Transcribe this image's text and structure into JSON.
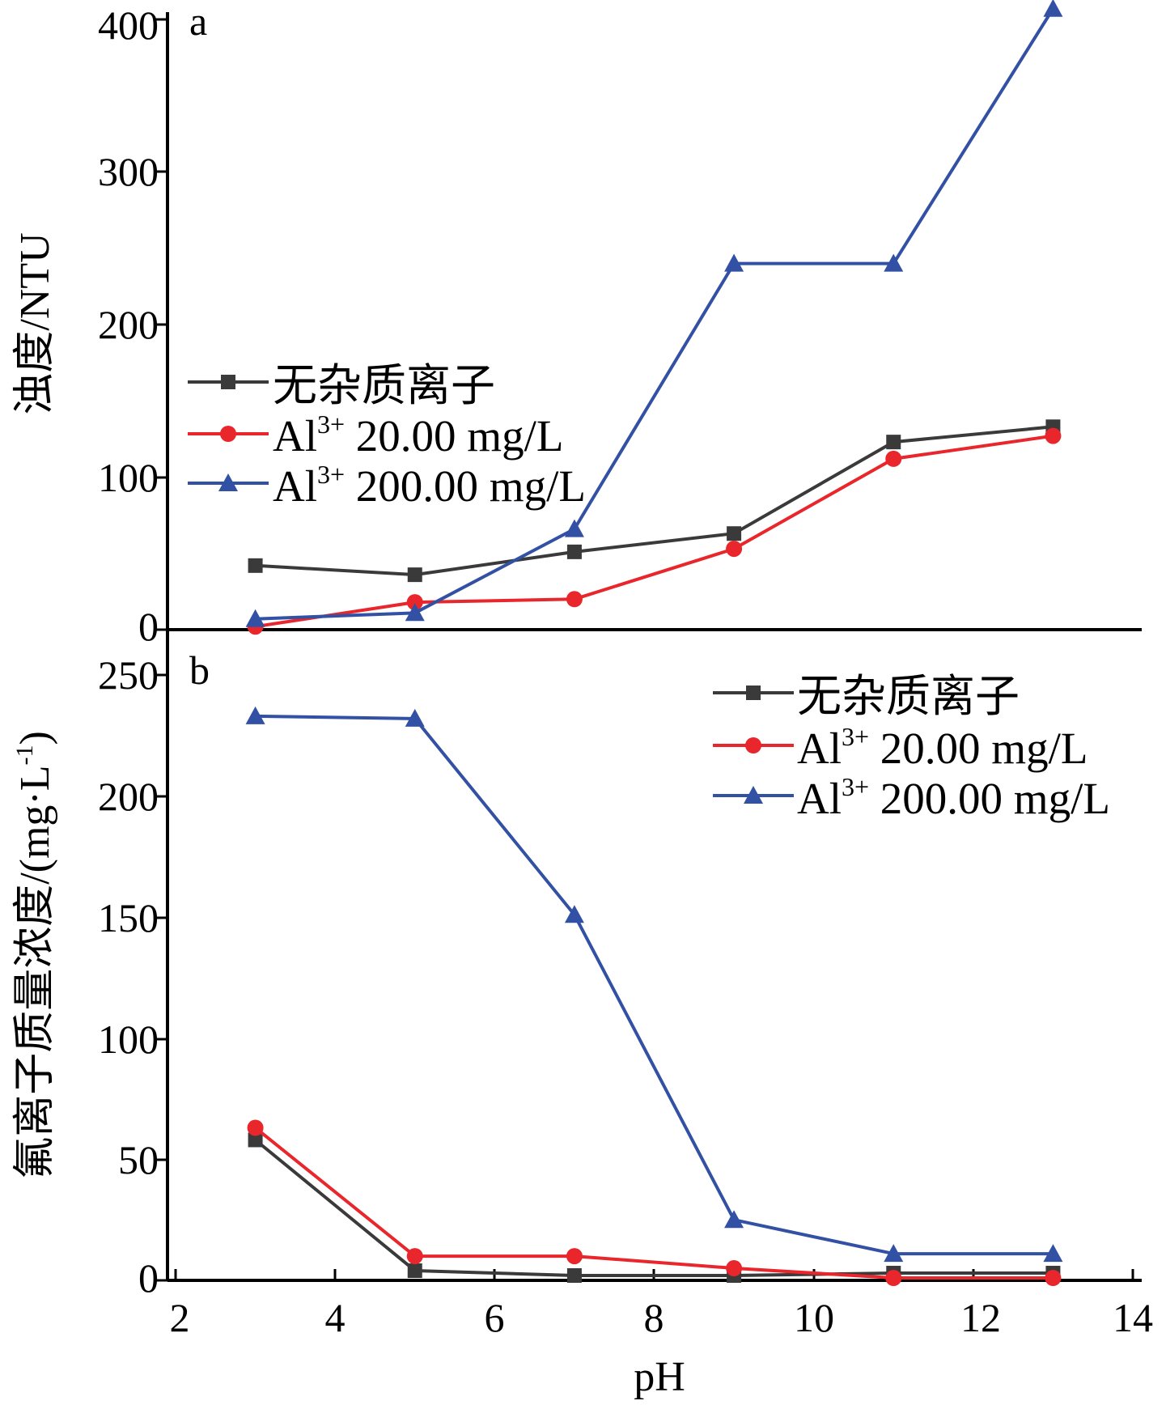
{
  "chart_data": [
    {
      "type": "line",
      "panel": "a",
      "ylabel": "浊度/NTU",
      "xlabel": "",
      "xlim": [
        2,
        14
      ],
      "ylim": [
        0,
        410
      ],
      "yticks": [
        "0",
        "100",
        "200",
        "300",
        "400"
      ],
      "x": [
        3,
        5,
        7,
        9,
        11,
        13
      ],
      "legend_position": "middle-left",
      "series": [
        {
          "key": "none",
          "name": "无杂质离子",
          "color": "#3a3a3a",
          "marker": "square",
          "values": [
            42,
            36,
            51,
            63,
            123,
            133
          ]
        },
        {
          "key": "al20",
          "name_prefix": "Al",
          "name_sup": "3+",
          "name_suffix": " 20.00 mg/L",
          "color": "#e8262b",
          "marker": "circle",
          "values": [
            2,
            18,
            20,
            53,
            112,
            127
          ]
        },
        {
          "key": "al200",
          "name_prefix": "Al",
          "name_sup": "3+",
          "name_suffix": " 200.00 mg/L",
          "color": "#3351a4",
          "marker": "triangle",
          "values": [
            7,
            11,
            66,
            240,
            240,
            407
          ]
        }
      ]
    },
    {
      "type": "line",
      "panel": "b",
      "ylabel": "氟离子质量浓度/(mg·L",
      "ylabel_sup": "-1",
      "ylabel_end": ")",
      "xlabel": "pH",
      "xlim": [
        2,
        14
      ],
      "ylim": [
        0,
        260
      ],
      "yticks": [
        "0",
        "50",
        "100",
        "150",
        "200",
        "250"
      ],
      "xticks": [
        "2",
        "4",
        "6",
        "8",
        "10",
        "12",
        "14"
      ],
      "x": [
        3,
        5,
        7,
        9,
        11,
        13
      ],
      "legend_position": "top-right",
      "series": [
        {
          "key": "none",
          "name": "无杂质离子",
          "color": "#3a3a3a",
          "marker": "square",
          "values": [
            58,
            4,
            2,
            2,
            3,
            3
          ]
        },
        {
          "key": "al20",
          "name_prefix": "Al",
          "name_sup": "3+",
          "name_suffix": " 20.00 mg/L",
          "color": "#e8262b",
          "marker": "circle",
          "values": [
            63,
            10,
            10,
            5,
            1,
            1
          ]
        },
        {
          "key": "al200",
          "name_prefix": "Al",
          "name_sup": "3+",
          "name_suffix": " 200.00 mg/L",
          "color": "#3351a4",
          "marker": "triangle",
          "values": [
            233,
            232,
            151,
            25,
            11,
            11
          ]
        }
      ]
    }
  ]
}
